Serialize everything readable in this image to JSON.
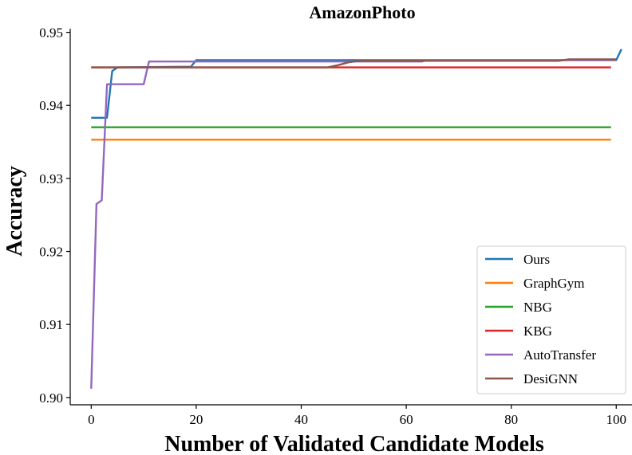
{
  "chart_data": {
    "type": "line",
    "title": "AmazonPhoto",
    "xlabel": "Number of Validated Candidate Models",
    "ylabel": "Accuracy",
    "xlim": [
      -4,
      103
    ],
    "ylim": [
      0.899,
      0.9505
    ],
    "xticks": [
      0,
      20,
      40,
      60,
      80,
      100
    ],
    "yticks": [
      0.9,
      0.91,
      0.92,
      0.93,
      0.94,
      0.95
    ],
    "ytick_labels": [
      "0.90",
      "0.91",
      "0.92",
      "0.93",
      "0.94",
      "0.95"
    ],
    "grid": false,
    "legend_position": "lower-right",
    "series": [
      {
        "name": "Ours",
        "color": "#1f77b4",
        "points": [
          [
            0,
            0.9383
          ],
          [
            3,
            0.9383
          ],
          [
            4,
            0.9447
          ],
          [
            5,
            0.9452
          ],
          [
            19,
            0.9453
          ],
          [
            20,
            0.9462
          ],
          [
            100,
            0.9462
          ],
          [
            101,
            0.9477
          ]
        ]
      },
      {
        "name": "GraphGym",
        "color": "#ff7f0e",
        "points": [
          [
            0,
            0.9353
          ],
          [
            99,
            0.9353
          ]
        ]
      },
      {
        "name": "NBG",
        "color": "#2ca02c",
        "points": [
          [
            0,
            0.937
          ],
          [
            99,
            0.937
          ]
        ]
      },
      {
        "name": "KBG",
        "color": "#d62728",
        "points": [
          [
            0,
            0.9452
          ],
          [
            99,
            0.9452
          ]
        ]
      },
      {
        "name": "AutoTransfer",
        "color": "#9467bd",
        "points": [
          [
            0,
            0.9012
          ],
          [
            1,
            0.9265
          ],
          [
            2,
            0.927
          ],
          [
            3,
            0.9429
          ],
          [
            10,
            0.9429
          ],
          [
            11,
            0.946
          ],
          [
            63,
            0.946
          ],
          [
            64,
            0.9462
          ],
          [
            100,
            0.9462
          ]
        ]
      },
      {
        "name": "DesiGNN",
        "color": "#8c564b",
        "points": [
          [
            0,
            0.9452
          ],
          [
            45,
            0.9452
          ],
          [
            47,
            0.9455
          ],
          [
            49,
            0.9459
          ],
          [
            51,
            0.9461
          ],
          [
            89,
            0.9461
          ],
          [
            91,
            0.9463
          ],
          [
            100,
            0.9463
          ]
        ]
      }
    ]
  }
}
